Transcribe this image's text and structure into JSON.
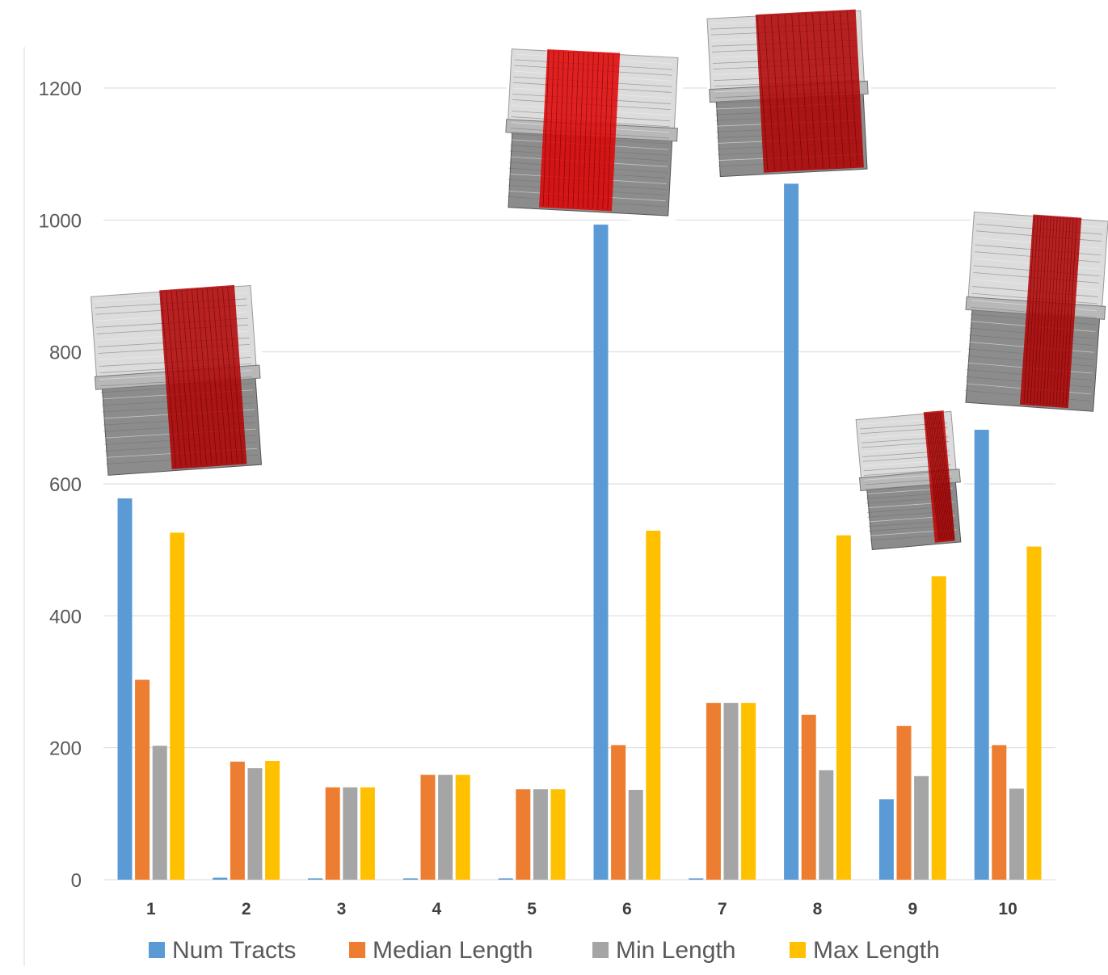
{
  "chart_data": {
    "type": "bar",
    "title": "",
    "xlabel": "",
    "ylabel": "",
    "categories": [
      "1",
      "2",
      "3",
      "4",
      "5",
      "6",
      "7",
      "8",
      "9",
      "10"
    ],
    "ylim": [
      0,
      1200
    ],
    "yticks": [
      "0",
      "200",
      "400",
      "600",
      "800",
      "1000",
      "1200"
    ],
    "grid": true,
    "legend_position": "bottom",
    "series": [
      {
        "name": "Num Tracts",
        "color": "#5b9bd5",
        "values": [
          578,
          3,
          2,
          2,
          2,
          993,
          2,
          1055,
          122,
          682
        ]
      },
      {
        "name": "Median Length",
        "color": "#ed7d31",
        "values": [
          303,
          179,
          140,
          159,
          137,
          204,
          268,
          250,
          233,
          204
        ]
      },
      {
        "name": "Min Length",
        "color": "#a5a5a5",
        "values": [
          203,
          169,
          140,
          159,
          137,
          136,
          268,
          166,
          157,
          138
        ]
      },
      {
        "name": "Max Length",
        "color": "#ffc000",
        "values": [
          526,
          180,
          140,
          159,
          137,
          529,
          268,
          522,
          460,
          505
        ]
      }
    ]
  },
  "thumbnails": [
    {
      "icon": "tract-volume-icon",
      "highlight": "#b00000"
    },
    {
      "icon": "tract-volume-icon",
      "highlight": "#e00000"
    },
    {
      "icon": "tract-volume-icon",
      "highlight": "#b00000"
    },
    {
      "icon": "tract-volume-icon",
      "highlight": "#b00000"
    },
    {
      "icon": "tract-volume-icon",
      "highlight": "#c00000"
    }
  ]
}
